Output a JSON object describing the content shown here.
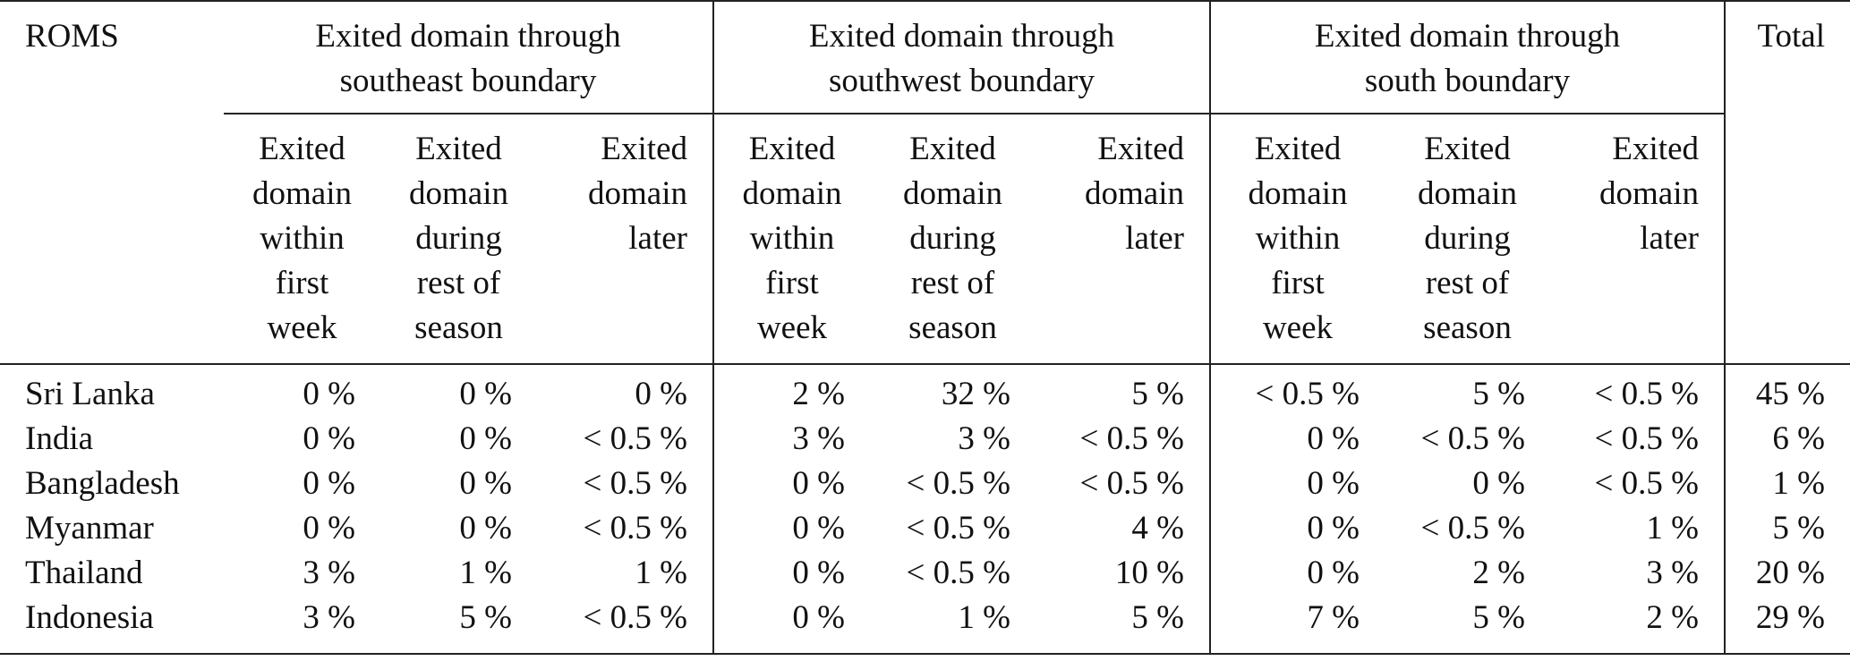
{
  "table": {
    "corner_label": "ROMS",
    "total_label": "Total",
    "groups": [
      {
        "line1": "Exited domain through",
        "line2": "southeast boundary"
      },
      {
        "line1": "Exited domain through",
        "line2": "southwest boundary"
      },
      {
        "line1": "Exited domain through",
        "line2": "south boundary"
      }
    ],
    "subheaders": [
      {
        "l1": "Exited",
        "l2": "domain",
        "l3": "within",
        "l4": "first",
        "l5": "week"
      },
      {
        "l1": "Exited",
        "l2": "domain",
        "l3": "during",
        "l4": "rest of",
        "l5": "season"
      },
      {
        "l1": "Exited",
        "l2": "domain",
        "l3": "later",
        "l4": "",
        "l5": ""
      }
    ],
    "rows": [
      {
        "country": "Sri Lanka",
        "v": [
          "0 %",
          "0 %",
          "0 %",
          "2 %",
          "32 %",
          "5 %",
          "< 0.5 %",
          "5 %",
          "< 0.5 %"
        ],
        "total": "45 %"
      },
      {
        "country": "India",
        "v": [
          "0 %",
          "0 %",
          "< 0.5 %",
          "3 %",
          "3 %",
          "< 0.5 %",
          "0 %",
          "< 0.5 %",
          "< 0.5 %"
        ],
        "total": "6 %"
      },
      {
        "country": "Bangladesh",
        "v": [
          "0 %",
          "0 %",
          "< 0.5 %",
          "0 %",
          "< 0.5 %",
          "< 0.5 %",
          "0 %",
          "0 %",
          "< 0.5 %"
        ],
        "total": "1 %"
      },
      {
        "country": "Myanmar",
        "v": [
          "0 %",
          "0 %",
          "< 0.5 %",
          "0 %",
          "< 0.5 %",
          "4 %",
          "0 %",
          "< 0.5 %",
          "1 %"
        ],
        "total": "5 %"
      },
      {
        "country": "Thailand",
        "v": [
          "3 %",
          "1 %",
          "1 %",
          "0 %",
          "< 0.5 %",
          "10 %",
          "0 %",
          "2 %",
          "3 %"
        ],
        "total": "20 %"
      },
      {
        "country": "Indonesia",
        "v": [
          "3 %",
          "5 %",
          "< 0.5 %",
          "0 %",
          "1 %",
          "5 %",
          "7 %",
          "5 %",
          "2 %"
        ],
        "total": "29 %"
      }
    ]
  }
}
